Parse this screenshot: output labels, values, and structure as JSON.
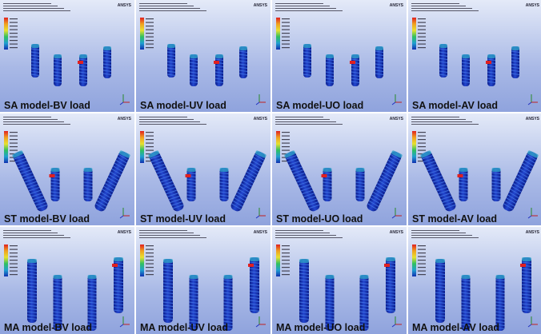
{
  "logo": "ANSYS",
  "panels": [
    {
      "caption": "SA model-BV load"
    },
    {
      "caption": "SA model-UV load"
    },
    {
      "caption": "SA model-UO load"
    },
    {
      "caption": "SA model-AV load"
    },
    {
      "caption": "ST model-BV load"
    },
    {
      "caption": "ST model-UV load"
    },
    {
      "caption": "ST model-UO load"
    },
    {
      "caption": "ST model-AV load"
    },
    {
      "caption": "MA model-BV load"
    },
    {
      "caption": "MA model-UV load"
    },
    {
      "caption": "MA model-UO load"
    },
    {
      "caption": "MA model-AV load"
    }
  ]
}
